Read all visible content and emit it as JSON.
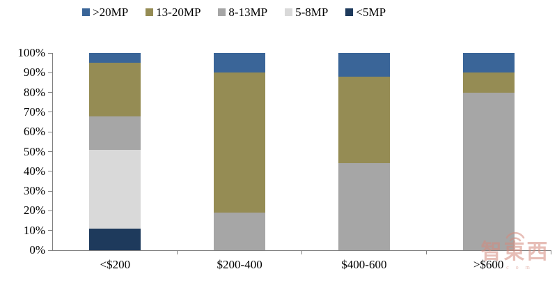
{
  "chart_data": {
    "type": "bar",
    "stacked": true,
    "percent_stacked": true,
    "title": "",
    "categories": [
      "<$200",
      "$200-400",
      "$400-600",
      ">$600"
    ],
    "series": [
      {
        "name": "<5MP",
        "color": "#1E3A5C",
        "values": [
          11,
          0,
          0,
          0
        ]
      },
      {
        "name": "5-8MP",
        "color": "#D9D9D9",
        "values": [
          40,
          0,
          0,
          0
        ]
      },
      {
        "name": "8-13MP",
        "color": "#A6A6A6",
        "values": [
          17,
          19,
          44,
          80
        ]
      },
      {
        "name": "13-20MP",
        "color": "#958C54",
        "values": [
          27,
          71,
          44,
          10
        ]
      },
      {
        "name": ">20MP",
        "color": "#3A6598",
        "values": [
          5,
          10,
          12,
          10
        ]
      }
    ],
    "legend": {
      "position": "top",
      "order": [
        ">20MP",
        "13-20MP",
        "8-13MP",
        "5-8MP",
        "<5MP"
      ]
    },
    "y_axis": {
      "min": 0,
      "max": 100,
      "unit": "%",
      "ticks": [
        "0%",
        "10%",
        "20%",
        "30%",
        "40%",
        "50%",
        "60%",
        "70%",
        "80%",
        "90%",
        "100%"
      ]
    },
    "x_axis": {
      "tick_marks_between_categories": true
    },
    "grid": false,
    "axis_color": "#7F7F7F"
  },
  "watermark": {
    "text": "智東西",
    "subtext": ". c o m"
  }
}
